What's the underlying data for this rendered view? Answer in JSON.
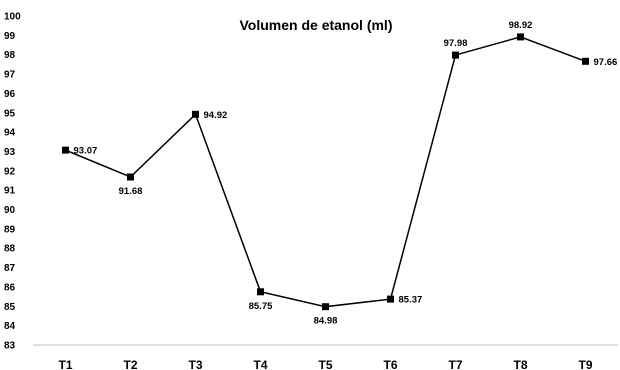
{
  "chart_data": {
    "type": "line",
    "title": "Volumen de etanol (ml)",
    "xlabel": "",
    "ylabel": "",
    "categories": [
      "T1",
      "T2",
      "T3",
      "T4",
      "T5",
      "T6",
      "T7",
      "T8",
      "T9"
    ],
    "series": [
      {
        "values": [
          93.07,
          91.68,
          94.92,
          85.75,
          84.98,
          85.37,
          97.98,
          98.92,
          97.66
        ],
        "color": "#000000",
        "marker": "square"
      }
    ],
    "data_labels": [
      "93.07",
      "91.68",
      "94.92",
      "85.75",
      "84.98",
      "85.37",
      "97.98",
      "98.92",
      "97.66"
    ],
    "ylim": [
      83,
      100
    ],
    "yticks": [
      "83",
      "84",
      "85",
      "86",
      "87",
      "88",
      "89",
      "90",
      "91",
      "92",
      "93",
      "94",
      "95",
      "96",
      "97",
      "98",
      "99",
      "100"
    ],
    "grid": false,
    "legend": "none"
  }
}
